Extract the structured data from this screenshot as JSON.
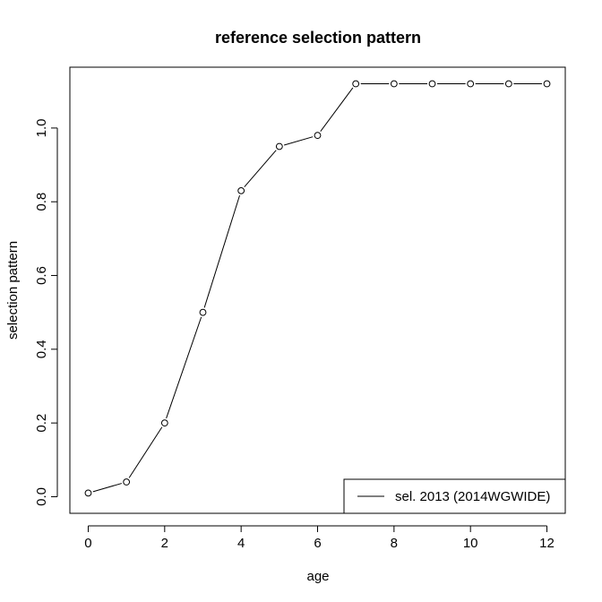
{
  "chart_data": {
    "type": "line",
    "title": "reference selection pattern",
    "xlabel": "age",
    "ylabel": "selection pattern",
    "xlim": [
      -0.48,
      12.48
    ],
    "ylim": [
      -0.045,
      1.165
    ],
    "x_ticks": [
      0,
      2,
      4,
      6,
      8,
      10,
      12
    ],
    "y_ticks": [
      0.0,
      0.2,
      0.4,
      0.6,
      0.8,
      1.0
    ],
    "x_tick_labels": [
      "0",
      "2",
      "4",
      "6",
      "8",
      "10",
      "12"
    ],
    "y_tick_labels": [
      "0.0",
      "0.2",
      "0.4",
      "0.6",
      "0.8",
      "1.0"
    ],
    "grid": false,
    "legend_position": "bottom-right",
    "series": [
      {
        "name": "sel. 2013 (2014WGWIDE)",
        "color": "#000000",
        "marker": "open-circle",
        "x": [
          0,
          1,
          2,
          3,
          4,
          5,
          6,
          7,
          8,
          9,
          10,
          11,
          12
        ],
        "y": [
          0.01,
          0.04,
          0.2,
          0.5,
          0.83,
          0.95,
          0.98,
          1.12,
          1.12,
          1.12,
          1.12,
          1.12,
          1.12
        ]
      }
    ]
  }
}
